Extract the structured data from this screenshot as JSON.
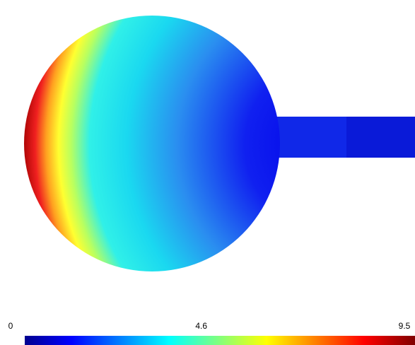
{
  "chart_data": {
    "type": "field",
    "colormap": "jet",
    "clim": [
      0,
      9.5
    ],
    "colorbar_ticks": [
      0,
      4.6,
      9.5
    ]
  }
}
